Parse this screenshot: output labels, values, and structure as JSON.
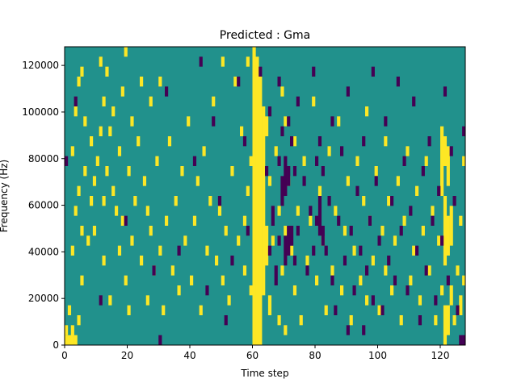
{
  "chart_data": {
    "type": "heatmap",
    "title": "Predicted : Gma",
    "xlabel": "Time step",
    "ylabel": "Frequency (Hz)",
    "xlim": [
      0,
      128
    ],
    "ylim": [
      0,
      128000
    ],
    "x_ticks": [
      0,
      20,
      40,
      60,
      80,
      100,
      120
    ],
    "y_ticks": [
      0,
      20000,
      40000,
      60000,
      80000,
      100000,
      120000
    ],
    "colormap": "viridis",
    "colors": {
      "background": "#21918c",
      "high": "#fde725",
      "low": "#440154"
    },
    "grid_cols": 128,
    "grid_rows": 30,
    "levels_description": "0 = low (dark purple), 1 = background (teal), 2 = high (yellow)",
    "yellow_segments": [
      [
        0,
        0,
        1
      ],
      [
        0,
        1,
        2
      ],
      [
        1,
        0,
        1
      ],
      [
        1,
        3,
        4
      ],
      [
        2,
        0,
        2
      ],
      [
        2,
        9,
        10
      ],
      [
        2,
        19,
        20
      ],
      [
        3,
        0,
        1
      ],
      [
        3,
        13,
        14
      ],
      [
        3,
        23,
        24
      ],
      [
        4,
        2,
        3
      ],
      [
        4,
        15,
        16
      ],
      [
        4,
        26,
        27
      ],
      [
        5,
        6,
        7
      ],
      [
        5,
        11,
        12
      ],
      [
        5,
        27,
        28
      ],
      [
        6,
        17,
        18
      ],
      [
        6,
        22,
        23
      ],
      [
        7,
        10,
        11
      ],
      [
        8,
        14,
        15
      ],
      [
        8,
        20,
        21
      ],
      [
        9,
        11,
        12
      ],
      [
        9,
        16,
        17
      ],
      [
        10,
        18,
        19
      ],
      [
        11,
        21,
        22
      ],
      [
        11,
        28,
        29
      ],
      [
        12,
        8,
        9
      ],
      [
        12,
        14,
        15
      ],
      [
        12,
        24,
        25
      ],
      [
        13,
        17,
        18
      ],
      [
        13,
        27,
        28
      ],
      [
        14,
        4,
        5
      ],
      [
        14,
        21,
        22
      ],
      [
        15,
        15,
        16
      ],
      [
        15,
        23,
        24
      ],
      [
        16,
        13,
        14
      ],
      [
        17,
        9,
        10
      ],
      [
        17,
        19,
        20
      ],
      [
        18,
        12,
        13
      ],
      [
        18,
        25,
        26
      ],
      [
        19,
        6,
        7
      ],
      [
        19,
        29,
        30
      ],
      [
        20,
        3,
        4
      ],
      [
        20,
        17,
        18
      ],
      [
        21,
        10,
        11
      ],
      [
        21,
        22,
        23
      ],
      [
        22,
        14,
        15
      ],
      [
        23,
        20,
        21
      ],
      [
        24,
        8,
        9
      ],
      [
        24,
        26,
        27
      ],
      [
        25,
        16,
        17
      ],
      [
        26,
        4,
        5
      ],
      [
        26,
        13,
        14
      ],
      [
        27,
        11,
        12
      ],
      [
        27,
        24,
        25
      ],
      [
        28,
        7,
        8
      ],
      [
        29,
        18,
        19
      ],
      [
        30,
        9,
        10
      ],
      [
        30,
        26,
        27
      ],
      [
        31,
        3,
        4
      ],
      [
        32,
        12,
        13
      ],
      [
        33,
        20,
        21
      ],
      [
        34,
        7,
        8
      ],
      [
        35,
        14,
        15
      ],
      [
        36,
        5,
        6
      ],
      [
        37,
        17,
        18
      ],
      [
        38,
        10,
        11
      ],
      [
        39,
        22,
        23
      ],
      [
        40,
        6,
        7
      ],
      [
        41,
        12,
        13
      ],
      [
        42,
        16,
        17
      ],
      [
        43,
        3,
        4
      ],
      [
        44,
        19,
        20
      ],
      [
        45,
        9,
        10
      ],
      [
        46,
        14,
        15
      ],
      [
        47,
        24,
        25
      ],
      [
        48,
        8,
        9
      ],
      [
        49,
        13,
        14
      ],
      [
        50,
        6,
        7
      ],
      [
        50,
        28,
        29
      ],
      [
        51,
        11,
        12
      ],
      [
        52,
        4,
        5
      ],
      [
        53,
        17,
        18
      ],
      [
        54,
        26,
        27
      ],
      [
        55,
        10,
        11
      ],
      [
        56,
        21,
        22
      ],
      [
        57,
        7,
        8
      ],
      [
        57,
        12,
        13
      ],
      [
        58,
        15,
        16
      ],
      [
        58,
        28,
        29
      ],
      [
        59,
        5,
        6
      ],
      [
        59,
        18,
        19
      ],
      [
        60,
        0,
        30
      ],
      [
        61,
        0,
        29
      ],
      [
        62,
        0,
        27
      ],
      [
        63,
        5,
        24
      ],
      [
        64,
        8,
        12
      ],
      [
        64,
        21,
        23
      ],
      [
        65,
        3,
        5
      ],
      [
        65,
        16,
        17
      ],
      [
        66,
        10,
        11
      ],
      [
        67,
        19,
        20
      ],
      [
        68,
        2,
        3
      ],
      [
        68,
        13,
        14
      ],
      [
        69,
        7,
        8
      ],
      [
        69,
        25,
        26
      ],
      [
        70,
        1,
        2
      ],
      [
        70,
        11,
        12
      ],
      [
        70,
        22,
        23
      ],
      [
        71,
        16,
        17
      ],
      [
        72,
        9,
        10
      ],
      [
        73,
        5,
        6
      ],
      [
        73,
        20,
        21
      ],
      [
        74,
        13,
        14
      ],
      [
        75,
        2,
        3
      ],
      [
        76,
        18,
        19
      ],
      [
        77,
        8,
        9
      ],
      [
        78,
        12,
        13
      ],
      [
        79,
        24,
        25
      ],
      [
        80,
        6,
        7
      ],
      [
        81,
        15,
        16
      ],
      [
        82,
        10,
        11
      ],
      [
        83,
        3,
        4
      ],
      [
        84,
        19,
        20
      ],
      [
        85,
        7,
        8
      ],
      [
        86,
        13,
        14
      ],
      [
        87,
        22,
        23
      ],
      [
        88,
        5,
        6
      ],
      [
        89,
        11,
        12
      ],
      [
        90,
        16,
        17
      ],
      [
        91,
        2,
        3
      ],
      [
        92,
        9,
        10
      ],
      [
        93,
        18,
        19
      ],
      [
        94,
        6,
        7
      ],
      [
        95,
        14,
        15
      ],
      [
        96,
        4,
        5
      ],
      [
        96,
        23,
        24
      ],
      [
        97,
        12,
        13
      ],
      [
        98,
        8,
        9
      ],
      [
        99,
        17,
        18
      ],
      [
        100,
        3,
        4
      ],
      [
        101,
        11,
        12
      ],
      [
        102,
        7,
        8
      ],
      [
        102,
        20,
        21
      ],
      [
        103,
        14,
        15
      ],
      [
        104,
        5,
        6
      ],
      [
        105,
        10,
        11
      ],
      [
        106,
        16,
        17
      ],
      [
        107,
        2,
        3
      ],
      [
        108,
        12,
        13
      ],
      [
        109,
        19,
        20
      ],
      [
        110,
        6,
        7
      ],
      [
        111,
        9,
        10
      ],
      [
        112,
        15,
        16
      ],
      [
        113,
        4,
        5
      ],
      [
        114,
        11,
        12
      ],
      [
        115,
        18,
        19
      ],
      [
        116,
        7,
        8
      ],
      [
        117,
        13,
        14
      ],
      [
        118,
        2,
        3
      ],
      [
        119,
        10,
        11
      ],
      [
        120,
        5,
        6
      ],
      [
        120,
        15,
        22
      ],
      [
        121,
        0,
        4
      ],
      [
        121,
        8,
        15
      ],
      [
        121,
        18,
        21
      ],
      [
        122,
        1,
        4
      ],
      [
        122,
        9,
        13
      ],
      [
        122,
        16,
        20
      ],
      [
        123,
        4,
        6
      ],
      [
        123,
        10,
        14
      ],
      [
        124,
        2,
        3
      ],
      [
        125,
        7,
        8
      ],
      [
        126,
        3,
        5
      ],
      [
        126,
        12,
        13
      ],
      [
        127,
        6,
        7
      ],
      [
        127,
        18,
        19
      ]
    ],
    "purple_segments": [
      [
        0,
        18,
        19
      ],
      [
        3,
        24,
        25
      ],
      [
        11,
        4,
        5
      ],
      [
        19,
        12,
        13
      ],
      [
        28,
        7,
        8
      ],
      [
        30,
        0,
        1
      ],
      [
        32,
        25,
        26
      ],
      [
        36,
        9,
        10
      ],
      [
        41,
        18,
        19
      ],
      [
        43,
        28,
        29
      ],
      [
        45,
        5,
        6
      ],
      [
        47,
        22,
        23
      ],
      [
        49,
        14,
        15
      ],
      [
        51,
        2,
        3
      ],
      [
        53,
        8,
        9
      ],
      [
        55,
        26,
        27
      ],
      [
        57,
        20,
        21
      ],
      [
        58,
        11,
        12
      ],
      [
        62,
        27,
        28
      ],
      [
        64,
        17,
        18
      ],
      [
        65,
        9,
        10
      ],
      [
        65,
        23,
        24
      ],
      [
        66,
        12,
        14
      ],
      [
        67,
        6,
        8
      ],
      [
        68,
        10,
        11
      ],
      [
        68,
        18,
        19
      ],
      [
        68,
        26,
        27
      ],
      [
        69,
        14,
        17
      ],
      [
        69,
        21,
        22
      ],
      [
        70,
        8,
        11
      ],
      [
        70,
        15,
        19
      ],
      [
        71,
        9,
        12
      ],
      [
        71,
        16,
        18
      ],
      [
        71,
        22,
        23
      ],
      [
        72,
        10,
        12
      ],
      [
        72,
        20,
        21
      ],
      [
        73,
        8,
        9
      ],
      [
        73,
        17,
        18
      ],
      [
        74,
        11,
        12
      ],
      [
        74,
        24,
        25
      ],
      [
        76,
        16,
        17
      ],
      [
        77,
        7,
        8
      ],
      [
        78,
        13,
        14
      ],
      [
        79,
        9,
        10
      ],
      [
        79,
        27,
        28
      ],
      [
        80,
        12,
        13
      ],
      [
        80,
        18,
        19
      ],
      [
        81,
        11,
        15
      ],
      [
        81,
        20,
        21
      ],
      [
        82,
        10,
        12
      ],
      [
        82,
        17,
        18
      ],
      [
        83,
        9,
        10
      ],
      [
        84,
        14,
        15
      ],
      [
        85,
        6,
        7
      ],
      [
        85,
        22,
        23
      ],
      [
        86,
        3,
        4
      ],
      [
        87,
        12,
        13
      ],
      [
        88,
        19,
        20
      ],
      [
        89,
        8,
        9
      ],
      [
        90,
        1,
        2
      ],
      [
        90,
        25,
        26
      ],
      [
        91,
        11,
        12
      ],
      [
        92,
        5,
        6
      ],
      [
        93,
        15,
        16
      ],
      [
        94,
        9,
        10
      ],
      [
        95,
        1,
        2
      ],
      [
        95,
        20,
        21
      ],
      [
        96,
        7,
        8
      ],
      [
        97,
        12,
        13
      ],
      [
        98,
        4,
        5
      ],
      [
        98,
        27,
        28
      ],
      [
        99,
        16,
        17
      ],
      [
        100,
        10,
        11
      ],
      [
        101,
        3,
        4
      ],
      [
        102,
        22,
        23
      ],
      [
        103,
        8,
        9
      ],
      [
        104,
        14,
        15
      ],
      [
        105,
        6,
        7
      ],
      [
        106,
        26,
        27
      ],
      [
        107,
        11,
        12
      ],
      [
        108,
        18,
        19
      ],
      [
        109,
        5,
        6
      ],
      [
        110,
        13,
        14
      ],
      [
        111,
        24,
        25
      ],
      [
        112,
        9,
        10
      ],
      [
        113,
        2,
        3
      ],
      [
        114,
        17,
        18
      ],
      [
        115,
        7,
        8
      ],
      [
        116,
        20,
        21
      ],
      [
        117,
        12,
        13
      ],
      [
        118,
        4,
        5
      ],
      [
        119,
        15,
        16
      ],
      [
        120,
        10,
        11
      ],
      [
        121,
        25,
        26
      ],
      [
        122,
        6,
        7
      ],
      [
        123,
        19,
        20
      ],
      [
        124,
        14,
        15
      ],
      [
        125,
        3,
        4
      ],
      [
        126,
        0,
        1
      ],
      [
        127,
        0,
        1
      ],
      [
        127,
        21,
        22
      ]
    ]
  }
}
